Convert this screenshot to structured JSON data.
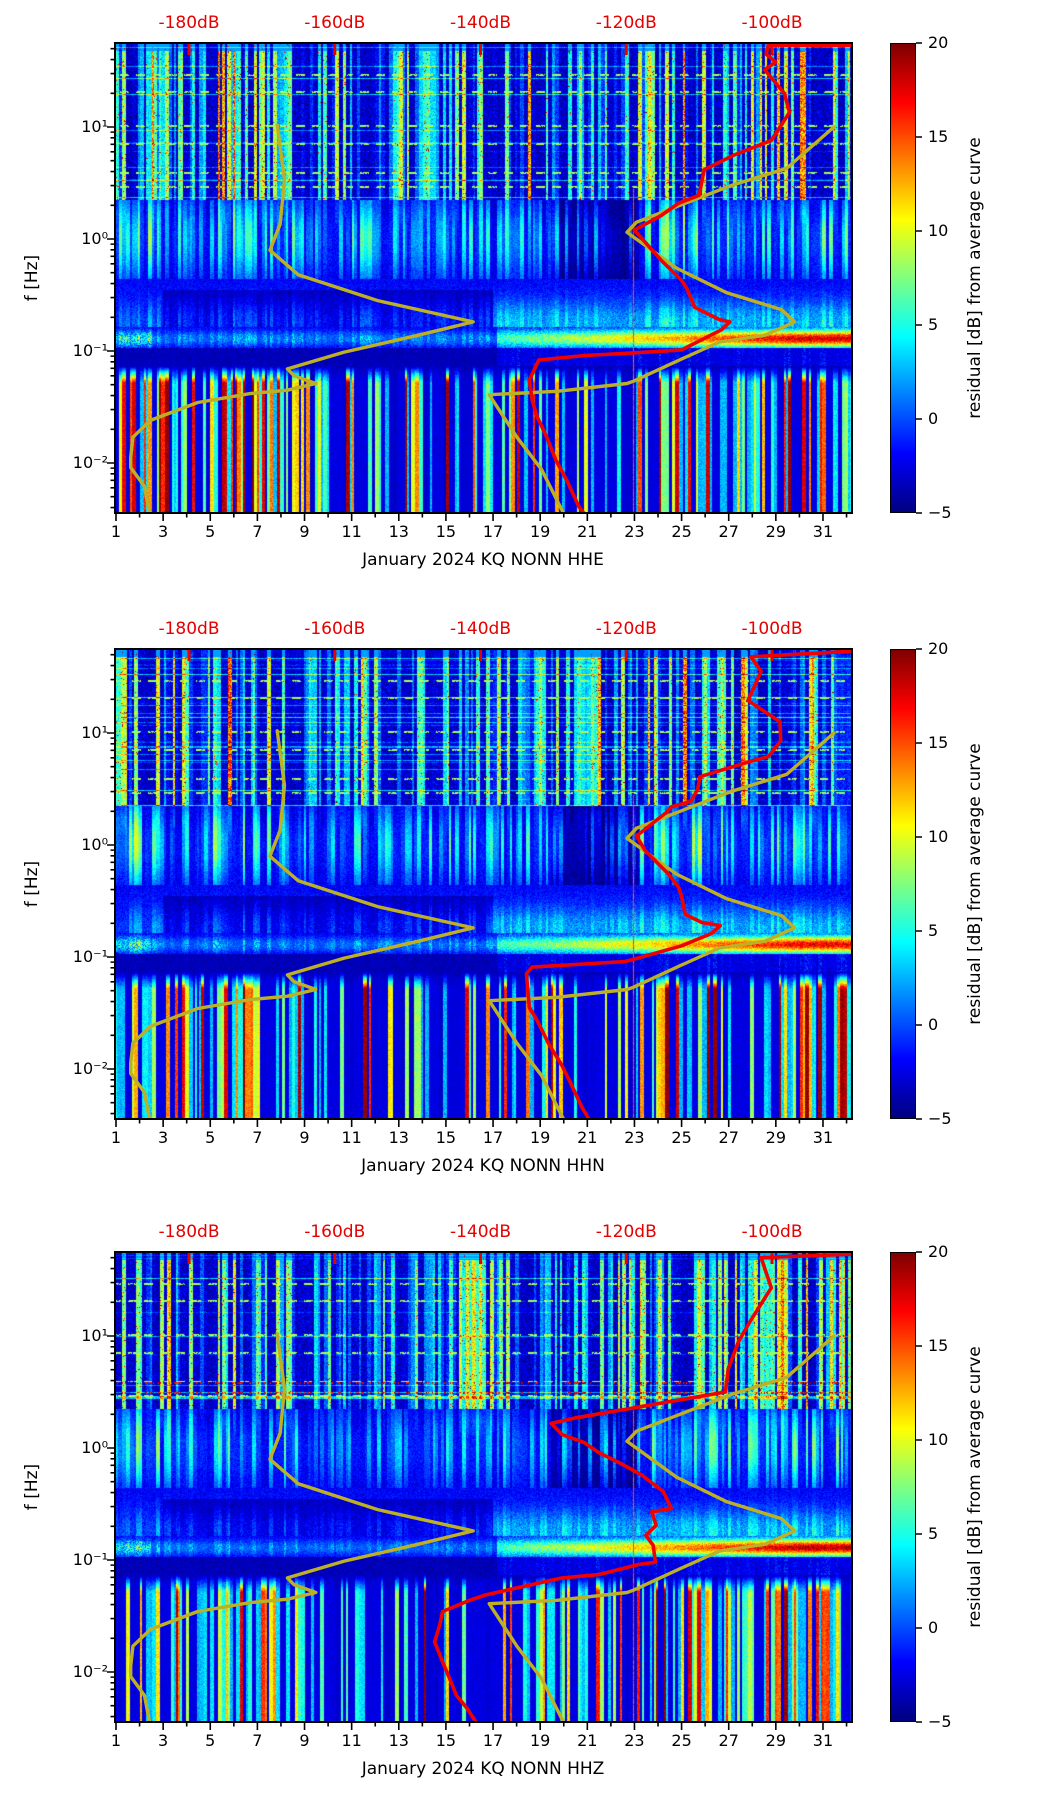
{
  "chart_data": {
    "type": "heatmap",
    "description": "Three stacked seismic spectrogram panels (residual PSD vs day and frequency) with overlaid monthly average curve (red) and Peterson noise model curves (olive), sharing a jet colorbar.",
    "panels": [
      {
        "title": "January 2024 KQ NONN  HHE",
        "month": "January 2024",
        "station": "KQ NONN",
        "channel": "HHE",
        "average_curve_db_logf": [
          [
            -89.0,
            1.73
          ],
          [
            -100.5,
            1.73
          ],
          [
            -100.8,
            1.65
          ],
          [
            -99.5,
            1.58
          ],
          [
            -101.0,
            1.51
          ],
          [
            -98.3,
            1.3
          ],
          [
            -97.6,
            1.13
          ],
          [
            -100.1,
            0.88
          ],
          [
            -105.2,
            0.75
          ],
          [
            -109.3,
            0.62
          ],
          [
            -110.0,
            0.39
          ],
          [
            -112.8,
            0.32
          ],
          [
            -115.2,
            0.21
          ],
          [
            -118.9,
            0.08
          ],
          [
            -115.2,
            -0.19
          ],
          [
            -112.4,
            -0.37
          ],
          [
            -111.7,
            -0.44
          ],
          [
            -110.6,
            -0.61
          ],
          [
            -107.2,
            -0.72
          ],
          [
            -105.8,
            -0.74
          ],
          [
            -106.9,
            -0.81
          ],
          [
            -112.4,
            -0.99
          ],
          [
            -119.7,
            -1.02
          ],
          [
            -125.7,
            -1.04
          ],
          [
            -132.0,
            -1.08
          ],
          [
            -133.3,
            -1.26
          ],
          [
            -132.9,
            -1.44
          ],
          [
            -132.2,
            -1.59
          ],
          [
            -130.9,
            -1.77
          ],
          [
            -129.7,
            -1.97
          ],
          [
            -128.2,
            -2.15
          ],
          [
            -126.5,
            -2.39
          ],
          [
            -125.8,
            -2.45
          ]
        ],
        "texture": {
          "seed": 11,
          "low_red": 0.3,
          "ms_strength": 0.95,
          "red_rows": [],
          "low_env": [
            0.6,
            0.9,
            0.8,
            0.7,
            0.95,
            0.9,
            0.85,
            0.8,
            0.4,
            0.35,
            0.5,
            0.3,
            0.45,
            0.35,
            0.5,
            0.55,
            0.4,
            0.6,
            0.5,
            0.45,
            0.55,
            0.35,
            0.65,
            0.8,
            0.9,
            0.7,
            0.65,
            0.55,
            0.75,
            0.8,
            0.7
          ],
          "top_env": [
            0.7,
            0.8,
            0.75,
            0.6,
            0.85,
            0.8,
            0.7,
            0.75,
            0.5,
            0.6,
            0.7,
            0.55,
            0.65,
            0.6,
            0.7,
            0.75,
            0.6,
            0.7,
            0.65,
            0.6,
            0.75,
            0.55,
            0.8,
            0.85,
            0.9,
            0.8,
            0.7,
            0.65,
            0.8,
            0.85,
            0.75
          ]
        }
      },
      {
        "title": "January 2024 KQ NONN  HHN",
        "month": "January 2024",
        "station": "KQ NONN",
        "channel": "HHN",
        "average_curve_db_logf": [
          [
            -89.0,
            1.73
          ],
          [
            -102.9,
            1.68
          ],
          [
            -101.5,
            1.55
          ],
          [
            -103.3,
            1.29
          ],
          [
            -98.9,
            1.1
          ],
          [
            -98.8,
            0.93
          ],
          [
            -100.5,
            0.79
          ],
          [
            -103.3,
            0.74
          ],
          [
            -109.9,
            0.61
          ],
          [
            -110.2,
            0.5
          ],
          [
            -111.1,
            0.39
          ],
          [
            -113.8,
            0.34
          ],
          [
            -114.5,
            0.29
          ],
          [
            -118.6,
            0.08
          ],
          [
            -117.4,
            -0.05
          ],
          [
            -114.2,
            -0.26
          ],
          [
            -112.8,
            -0.38
          ],
          [
            -112.4,
            -0.46
          ],
          [
            -111.9,
            -0.62
          ],
          [
            -109.7,
            -0.69
          ],
          [
            -107.1,
            -0.72
          ],
          [
            -108.3,
            -0.79
          ],
          [
            -112.4,
            -0.9
          ],
          [
            -120.1,
            -1.04
          ],
          [
            -132.9,
            -1.09
          ],
          [
            -133.7,
            -1.15
          ],
          [
            -133.3,
            -1.45
          ],
          [
            -132.2,
            -1.57
          ],
          [
            -130.6,
            -1.78
          ],
          [
            -128.9,
            -1.96
          ],
          [
            -127.6,
            -2.13
          ],
          [
            -126.1,
            -2.34
          ],
          [
            -125.1,
            -2.45
          ]
        ],
        "texture": {
          "seed": 47,
          "low_red": 0.28,
          "ms_strength": 0.9,
          "red_rows": [],
          "low_env": [
            0.65,
            0.85,
            0.85,
            0.65,
            0.9,
            0.95,
            0.8,
            0.75,
            0.45,
            0.3,
            0.45,
            0.35,
            0.4,
            0.4,
            0.55,
            0.5,
            0.45,
            0.55,
            0.55,
            0.4,
            0.5,
            0.4,
            0.6,
            0.85,
            0.85,
            0.75,
            0.6,
            0.6,
            0.7,
            0.85,
            0.65
          ],
          "top_env": [
            0.75,
            0.8,
            0.7,
            0.65,
            0.8,
            0.85,
            0.7,
            0.7,
            0.55,
            0.55,
            0.7,
            0.6,
            0.6,
            0.65,
            0.7,
            0.7,
            0.65,
            0.7,
            0.6,
            0.65,
            0.7,
            0.6,
            0.8,
            0.8,
            0.9,
            0.75,
            0.7,
            0.7,
            0.8,
            0.8,
            0.7
          ]
        }
      },
      {
        "title": "January 2024 KQ NONN  HHZ",
        "month": "January 2024",
        "station": "KQ NONN",
        "channel": "HHZ",
        "average_curve_db_logf": [
          [
            -89.0,
            1.73
          ],
          [
            -101.5,
            1.7
          ],
          [
            -100.1,
            1.43
          ],
          [
            -103.0,
            1.13
          ],
          [
            -104.6,
            0.95
          ],
          [
            -106.0,
            0.71
          ],
          [
            -106.4,
            0.5
          ],
          [
            -126.9,
            0.27
          ],
          [
            -130.3,
            0.22
          ],
          [
            -128.8,
            0.12
          ],
          [
            -125.8,
            0.05
          ],
          [
            -123.8,
            -0.04
          ],
          [
            -121.0,
            -0.13
          ],
          [
            -117.9,
            -0.24
          ],
          [
            -114.9,
            -0.39
          ],
          [
            -113.8,
            -0.54
          ],
          [
            -116.5,
            -0.57
          ],
          [
            -115.9,
            -0.69
          ],
          [
            -117.3,
            -0.78
          ],
          [
            -116.3,
            -0.87
          ],
          [
            -116.0,
            -1.02
          ],
          [
            -118.3,
            -1.04
          ],
          [
            -123.8,
            -1.13
          ],
          [
            -128.8,
            -1.16
          ],
          [
            -139.2,
            -1.31
          ],
          [
            -141.5,
            -1.36
          ],
          [
            -145.2,
            -1.46
          ],
          [
            -145.6,
            -1.58
          ],
          [
            -146.3,
            -1.73
          ],
          [
            -145.2,
            -1.91
          ],
          [
            -144.3,
            -2.05
          ],
          [
            -143.3,
            -2.21
          ],
          [
            -141.9,
            -2.32
          ],
          [
            -140.6,
            -2.45
          ]
        ],
        "texture": {
          "seed": 83,
          "low_red": 0.34,
          "ms_strength": 1.0,
          "red_rows": [
            0.59,
            0.5
          ],
          "low_env": [
            0.55,
            0.85,
            0.8,
            0.6,
            0.9,
            0.9,
            0.8,
            0.7,
            0.4,
            0.35,
            0.45,
            0.3,
            0.4,
            0.35,
            0.5,
            0.5,
            0.45,
            0.6,
            0.55,
            0.5,
            0.6,
            0.45,
            0.7,
            0.85,
            0.9,
            0.8,
            0.7,
            0.65,
            0.8,
            0.85,
            0.75
          ],
          "top_env": [
            0.7,
            0.85,
            0.75,
            0.6,
            0.8,
            0.8,
            0.75,
            0.7,
            0.5,
            0.6,
            0.65,
            0.55,
            0.6,
            0.6,
            0.7,
            0.7,
            0.6,
            0.75,
            0.65,
            0.6,
            0.7,
            0.6,
            0.8,
            0.85,
            0.85,
            0.8,
            0.75,
            0.7,
            0.85,
            0.85,
            0.8
          ]
        }
      }
    ],
    "noise_models": {
      "nlnm_db_logf": [
        [
          -167.9,
          1.02
        ],
        [
          -166.9,
          0.53
        ],
        [
          -167.5,
          0.13
        ],
        [
          -168.9,
          -0.1
        ],
        [
          -165.0,
          -0.32
        ],
        [
          -154.1,
          -0.55
        ],
        [
          -141.0,
          -0.74
        ],
        [
          -148.6,
          -0.86
        ],
        [
          -158.7,
          -1.01
        ],
        [
          -166.5,
          -1.16
        ],
        [
          -165.6,
          -1.22
        ],
        [
          -162.6,
          -1.29
        ],
        [
          -166.5,
          -1.35
        ],
        [
          -171.6,
          -1.38
        ],
        [
          -178.8,
          -1.46
        ],
        [
          -185.3,
          -1.62
        ],
        [
          -187.7,
          -1.77
        ],
        [
          -188.0,
          -1.95
        ],
        [
          -188.0,
          -2.04
        ],
        [
          -186.1,
          -2.21
        ],
        [
          -185.4,
          -2.45
        ]
      ],
      "nhnm_db_logf": [
        [
          -91.5,
          1.0
        ],
        [
          -98.0,
          0.63
        ],
        [
          -105.5,
          0.48
        ],
        [
          -118.6,
          0.15
        ],
        [
          -119.9,
          0.06
        ],
        [
          -113.1,
          -0.26
        ],
        [
          -106.2,
          -0.48
        ],
        [
          -98.7,
          -0.63
        ],
        [
          -96.9,
          -0.74
        ],
        [
          -101.0,
          -0.86
        ],
        [
          -107.2,
          -0.92
        ],
        [
          -112.7,
          -1.08
        ],
        [
          -119.0,
          -1.27
        ],
        [
          -119.9,
          -1.29
        ],
        [
          -129.5,
          -1.36
        ],
        [
          -138.8,
          -1.39
        ],
        [
          -135.0,
          -1.77
        ],
        [
          -131.6,
          -2.06
        ],
        [
          -128.6,
          -2.45
        ]
      ]
    },
    "axes": {
      "x": {
        "tick_labels": [
          "1",
          "3",
          "5",
          "7",
          "9",
          "11",
          "13",
          "15",
          "17",
          "19",
          "21",
          "23",
          "25",
          "27",
          "29",
          "31"
        ],
        "tick_days": [
          1,
          3,
          5,
          7,
          9,
          11,
          13,
          15,
          17,
          19,
          21,
          23,
          25,
          27,
          29,
          31
        ],
        "minor_days": [
          2,
          4,
          6,
          8,
          10,
          12,
          14,
          16,
          18,
          20,
          22,
          24,
          26,
          28,
          30,
          32
        ],
        "range_days": [
          1,
          32.25
        ],
        "unit": "day of month"
      },
      "y": {
        "label": "f [Hz]",
        "tick_labels": [
          "10¹",
          "10⁰",
          "10⁻¹",
          "10⁻²"
        ],
        "tick_logf": [
          1,
          0,
          -1,
          -2
        ],
        "range_logf": [
          -2.446,
          1.75
        ],
        "scale": "log"
      },
      "top": {
        "tick_labels": [
          "-180dB",
          "-160dB",
          "-140dB",
          "-120dB",
          "-100dB"
        ],
        "tick_db": [
          -180,
          -160,
          -140,
          -120,
          -100
        ],
        "color": "#e60000"
      }
    },
    "colorbar": {
      "label": "residual [dB] from average curve",
      "tick_labels": [
        "20",
        "15",
        "10",
        "5",
        "0",
        "−5"
      ],
      "tick_values": [
        20,
        15,
        10,
        5,
        0,
        -5
      ],
      "vmin": -5,
      "vmax": 20,
      "colormap": "jet"
    },
    "colors": {
      "average_curve": "#f00000",
      "noise_model_curve": "#bdb025",
      "top_axis_label": "#e60000",
      "tick_label": "#000000",
      "background": "#ffffff"
    },
    "dash_rows_logf": [
      1.47,
      1.32,
      1.02,
      0.86,
      0.6,
      0.47
    ]
  }
}
